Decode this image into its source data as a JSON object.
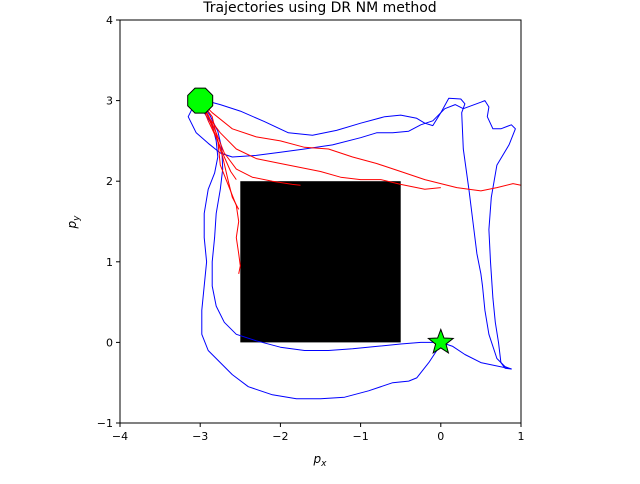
{
  "chart_data": {
    "type": "line",
    "title": "Trajectories using DR NM method",
    "xlabel_base": "p",
    "xlabel_sub": "x",
    "ylabel_base": "p",
    "ylabel_sub": "y",
    "xlim": [
      -4,
      1
    ],
    "ylim": [
      -1,
      4
    ],
    "xticks": [
      -4,
      -3,
      -2,
      -1,
      0,
      1
    ],
    "yticks": [
      -1,
      0,
      1,
      2,
      3,
      4
    ],
    "grid": false,
    "obstacle": {
      "x": [
        -2.5,
        -0.5
      ],
      "y": [
        0,
        2
      ],
      "color": "#000000"
    },
    "start": {
      "x": -3,
      "y": 3,
      "shape": "octagon",
      "color": "#00ff00"
    },
    "goal": {
      "x": 0,
      "y": 0,
      "shape": "star",
      "color": "#00ff00"
    },
    "series": [
      {
        "color": "#0000ff",
        "points": [
          [
            -3,
            3
          ],
          [
            -2.9,
            2.99
          ],
          [
            -2.75,
            2.95
          ],
          [
            -2.5,
            2.87
          ],
          [
            -2.2,
            2.74
          ],
          [
            -1.9,
            2.6
          ],
          [
            -1.6,
            2.57
          ],
          [
            -1.3,
            2.63
          ],
          [
            -1.0,
            2.72
          ],
          [
            -0.7,
            2.8
          ],
          [
            -0.5,
            2.82
          ],
          [
            -0.3,
            2.78
          ],
          [
            -0.2,
            2.72
          ],
          [
            -0.1,
            2.69
          ],
          [
            0,
            2.85
          ],
          [
            0.1,
            3.03
          ],
          [
            0.25,
            3.02
          ],
          [
            0.3,
            2.96
          ],
          [
            0.26,
            2.85
          ],
          [
            0.28,
            2.4
          ],
          [
            0.35,
            1.9
          ],
          [
            0.4,
            1.5
          ],
          [
            0.45,
            1.1
          ],
          [
            0.5,
            0.85
          ],
          [
            0.52,
            0.7
          ],
          [
            0.55,
            0.4
          ],
          [
            0.6,
            0.1
          ],
          [
            0.7,
            -0.2
          ],
          [
            0.8,
            -0.3
          ],
          [
            0.88,
            -0.33
          ]
        ]
      },
      {
        "color": "#0000ff",
        "points": [
          [
            -3,
            3
          ],
          [
            -3.1,
            2.9
          ],
          [
            -3.15,
            2.8
          ],
          [
            -3.05,
            2.6
          ],
          [
            -2.9,
            2.47
          ],
          [
            -2.75,
            2.35
          ],
          [
            -2.6,
            2.3
          ],
          [
            -2.3,
            2.32
          ],
          [
            -2.0,
            2.36
          ],
          [
            -1.7,
            2.4
          ],
          [
            -1.35,
            2.45
          ],
          [
            -1.0,
            2.54
          ],
          [
            -0.8,
            2.6
          ],
          [
            -0.6,
            2.6
          ],
          [
            -0.4,
            2.62
          ],
          [
            -0.25,
            2.7
          ],
          [
            -0.1,
            2.75
          ],
          [
            0.05,
            2.9
          ],
          [
            0.18,
            2.95
          ],
          [
            0.28,
            2.9
          ],
          [
            0.5,
            2.98
          ],
          [
            0.55,
            3.0
          ],
          [
            0.6,
            2.92
          ],
          [
            0.58,
            2.8
          ],
          [
            0.65,
            2.65
          ],
          [
            0.75,
            2.65
          ],
          [
            0.88,
            2.7
          ],
          [
            0.93,
            2.65
          ],
          [
            0.85,
            2.45
          ],
          [
            0.7,
            2.2
          ],
          [
            0.63,
            1.8
          ],
          [
            0.6,
            1.4
          ],
          [
            0.62,
            1.0
          ],
          [
            0.65,
            0.55
          ],
          [
            0.68,
            0.25
          ],
          [
            0.72,
            0.0
          ],
          [
            0.75,
            -0.25
          ],
          [
            0.8,
            -0.32
          ],
          [
            0.88,
            -0.33
          ],
          [
            0.5,
            -0.25
          ],
          [
            0.3,
            -0.15
          ],
          [
            0.15,
            -0.05
          ],
          [
            0,
            0
          ]
        ]
      },
      {
        "color": "#0000ff",
        "points": [
          [
            -3,
            3
          ],
          [
            -2.95,
            2.85
          ],
          [
            -2.85,
            2.7
          ],
          [
            -2.8,
            2.5
          ],
          [
            -2.78,
            2.3
          ],
          [
            -2.82,
            2.1
          ],
          [
            -2.9,
            1.9
          ],
          [
            -2.95,
            1.6
          ],
          [
            -2.95,
            1.3
          ],
          [
            -2.92,
            1.0
          ],
          [
            -2.95,
            0.7
          ],
          [
            -2.98,
            0.4
          ],
          [
            -2.98,
            0.1
          ],
          [
            -2.9,
            -0.1
          ],
          [
            -2.8,
            -0.2
          ],
          [
            -2.6,
            -0.4
          ],
          [
            -2.4,
            -0.55
          ],
          [
            -2.1,
            -0.65
          ],
          [
            -1.8,
            -0.7
          ],
          [
            -1.5,
            -0.7
          ],
          [
            -1.2,
            -0.68
          ],
          [
            -0.9,
            -0.6
          ],
          [
            -0.6,
            -0.5
          ],
          [
            -0.4,
            -0.48
          ],
          [
            -0.3,
            -0.44
          ],
          [
            -0.15,
            -0.25
          ],
          [
            -0.05,
            -0.1
          ],
          [
            0,
            0
          ]
        ]
      },
      {
        "color": "#0000ff",
        "points": [
          [
            -3,
            3
          ],
          [
            -2.88,
            2.82
          ],
          [
            -2.78,
            2.62
          ],
          [
            -2.73,
            2.4
          ],
          [
            -2.72,
            2.15
          ],
          [
            -2.75,
            1.9
          ],
          [
            -2.8,
            1.6
          ],
          [
            -2.82,
            1.3
          ],
          [
            -2.85,
            1.0
          ],
          [
            -2.85,
            0.7
          ],
          [
            -2.8,
            0.45
          ],
          [
            -2.7,
            0.25
          ],
          [
            -2.55,
            0.1
          ],
          [
            -2.3,
            0.02
          ],
          [
            -2.0,
            -0.06
          ],
          [
            -1.7,
            -0.1
          ],
          [
            -1.4,
            -0.1
          ],
          [
            -1.1,
            -0.08
          ],
          [
            -0.8,
            -0.05
          ],
          [
            -0.5,
            -0.02
          ],
          [
            -0.25,
            0.0
          ],
          [
            0,
            0
          ]
        ]
      },
      {
        "color": "#ff0000",
        "points": [
          [
            -3,
            3
          ],
          [
            -2.85,
            2.85
          ],
          [
            -2.6,
            2.65
          ],
          [
            -2.3,
            2.55
          ],
          [
            -2.0,
            2.5
          ],
          [
            -1.7,
            2.42
          ],
          [
            -1.4,
            2.4
          ],
          [
            -1.1,
            2.3
          ],
          [
            -0.8,
            2.22
          ],
          [
            -0.5,
            2.12
          ],
          [
            -0.2,
            2.02
          ],
          [
            0.2,
            1.92
          ],
          [
            0.5,
            1.88
          ],
          [
            0.7,
            1.92
          ],
          [
            0.9,
            1.97
          ],
          [
            1.0,
            1.95
          ]
        ]
      },
      {
        "color": "#ff0000",
        "points": [
          [
            -3,
            3
          ],
          [
            -2.9,
            2.8
          ],
          [
            -2.75,
            2.6
          ],
          [
            -2.55,
            2.4
          ],
          [
            -2.3,
            2.28
          ],
          [
            -2.0,
            2.22
          ],
          [
            -1.75,
            2.17
          ],
          [
            -1.5,
            2.12
          ],
          [
            -1.25,
            2.05
          ],
          [
            -1.0,
            2.02
          ],
          [
            -0.75,
            2.02
          ],
          [
            -0.5,
            1.96
          ],
          [
            -0.2,
            1.9
          ],
          [
            0,
            1.92
          ]
        ]
      },
      {
        "color": "#ff0000",
        "points": [
          [
            -3,
            3
          ],
          [
            -2.9,
            2.82
          ],
          [
            -2.8,
            2.6
          ],
          [
            -2.7,
            2.35
          ],
          [
            -2.55,
            2.15
          ],
          [
            -2.35,
            2.05
          ],
          [
            -2.1,
            2.0
          ],
          [
            -1.85,
            1.96
          ],
          [
            -1.75,
            1.95
          ]
        ]
      },
      {
        "color": "#ff0000",
        "points": [
          [
            -3,
            3
          ],
          [
            -2.9,
            2.75
          ],
          [
            -2.78,
            2.5
          ],
          [
            -2.7,
            2.3
          ],
          [
            -2.62,
            2.12
          ],
          [
            -2.55,
            2.02
          ]
        ]
      },
      {
        "color": "#ff0000",
        "points": [
          [
            -3,
            3
          ],
          [
            -2.85,
            2.8
          ],
          [
            -2.78,
            2.5
          ],
          [
            -2.75,
            2.2
          ],
          [
            -2.65,
            1.95
          ],
          [
            -2.55,
            1.7
          ],
          [
            -2.52,
            1.5
          ],
          [
            -2.55,
            1.3
          ],
          [
            -2.52,
            1.1
          ],
          [
            -2.5,
            0.95
          ],
          [
            -2.52,
            0.85
          ]
        ]
      },
      {
        "color": "#ff0000",
        "points": [
          [
            -3,
            3
          ],
          [
            -2.9,
            2.8
          ],
          [
            -2.8,
            2.55
          ],
          [
            -2.72,
            2.3
          ],
          [
            -2.65,
            2.0
          ],
          [
            -2.6,
            1.8
          ],
          [
            -2.52,
            1.65
          ]
        ]
      }
    ]
  }
}
